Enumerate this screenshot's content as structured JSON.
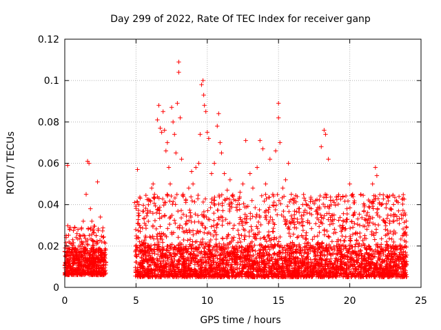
{
  "chart_data": {
    "type": "scatter",
    "title": "Day 299 of 2022, Rate Of TEC Index for receiver ganp",
    "xlabel": "GPS time / hours",
    "ylabel": "ROTI / TECUs",
    "xlim": [
      0,
      25
    ],
    "ylim": [
      0,
      0.12
    ],
    "xticks": [
      "0",
      "5",
      "10",
      "15",
      "20",
      "25"
    ],
    "yticks": [
      "0",
      "0.02",
      "0.04",
      "0.06",
      "0.08",
      "0.1",
      "0.12"
    ],
    "grid": true,
    "marker": "+",
    "color": "#ff0000",
    "points": [
      [
        0.1,
        0.025
      ],
      [
        0.2,
        0.059
      ],
      [
        0.3,
        0.022
      ],
      [
        0.5,
        0.021
      ],
      [
        0.7,
        0.019
      ],
      [
        1.0,
        0.02
      ],
      [
        1.3,
        0.032
      ],
      [
        1.5,
        0.045
      ],
      [
        1.6,
        0.061
      ],
      [
        1.7,
        0.06
      ],
      [
        1.8,
        0.038
      ],
      [
        1.9,
        0.032
      ],
      [
        2.0,
        0.028
      ],
      [
        2.2,
        0.025
      ],
      [
        2.3,
        0.051
      ],
      [
        2.5,
        0.034
      ],
      [
        2.6,
        0.022
      ],
      [
        2.8,
        0.018
      ],
      [
        4.9,
        0.041
      ],
      [
        5.1,
        0.057
      ],
      [
        5.2,
        0.04
      ],
      [
        5.4,
        0.022
      ],
      [
        5.6,
        0.031
      ],
      [
        5.8,
        0.036
      ],
      [
        6.0,
        0.042
      ],
      [
        6.1,
        0.048
      ],
      [
        6.2,
        0.05
      ],
      [
        6.3,
        0.045
      ],
      [
        6.5,
        0.081
      ],
      [
        6.6,
        0.088
      ],
      [
        6.7,
        0.077
      ],
      [
        6.8,
        0.075
      ],
      [
        6.9,
        0.085
      ],
      [
        7.0,
        0.076
      ],
      [
        7.1,
        0.066
      ],
      [
        7.2,
        0.07
      ],
      [
        7.3,
        0.058
      ],
      [
        7.4,
        0.05
      ],
      [
        7.5,
        0.087
      ],
      [
        7.6,
        0.08
      ],
      [
        7.7,
        0.074
      ],
      [
        7.8,
        0.065
      ],
      [
        7.9,
        0.089
      ],
      [
        8.0,
        0.104
      ],
      [
        8.0,
        0.109
      ],
      [
        8.1,
        0.082
      ],
      [
        8.2,
        0.062
      ],
      [
        8.3,
        0.045
      ],
      [
        8.5,
        0.042
      ],
      [
        8.7,
        0.048
      ],
      [
        8.9,
        0.056
      ],
      [
        9.0,
        0.05
      ],
      [
        9.2,
        0.058
      ],
      [
        9.4,
        0.06
      ],
      [
        9.5,
        0.074
      ],
      [
        9.6,
        0.098
      ],
      [
        9.7,
        0.1
      ],
      [
        9.75,
        0.093
      ],
      [
        9.8,
        0.088
      ],
      [
        9.9,
        0.085
      ],
      [
        10.0,
        0.075
      ],
      [
        10.1,
        0.072
      ],
      [
        10.3,
        0.055
      ],
      [
        10.5,
        0.06
      ],
      [
        10.7,
        0.078
      ],
      [
        10.8,
        0.084
      ],
      [
        10.9,
        0.07
      ],
      [
        11.0,
        0.065
      ],
      [
        11.2,
        0.055
      ],
      [
        11.4,
        0.047
      ],
      [
        11.6,
        0.052
      ],
      [
        11.8,
        0.044
      ],
      [
        12.0,
        0.042
      ],
      [
        12.3,
        0.046
      ],
      [
        12.5,
        0.05
      ],
      [
        12.7,
        0.071
      ],
      [
        13.0,
        0.055
      ],
      [
        13.2,
        0.048
      ],
      [
        13.5,
        0.058
      ],
      [
        13.7,
        0.071
      ],
      [
        13.9,
        0.067
      ],
      [
        14.1,
        0.05
      ],
      [
        14.4,
        0.062
      ],
      [
        14.6,
        0.045
      ],
      [
        14.8,
        0.066
      ],
      [
        15.0,
        0.089
      ],
      [
        15.0,
        0.082
      ],
      [
        15.1,
        0.07
      ],
      [
        15.3,
        0.048
      ],
      [
        15.5,
        0.052
      ],
      [
        15.7,
        0.06
      ],
      [
        15.9,
        0.045
      ],
      [
        16.1,
        0.042
      ],
      [
        16.4,
        0.038
      ],
      [
        16.7,
        0.04
      ],
      [
        17.0,
        0.036
      ],
      [
        17.3,
        0.038
      ],
      [
        17.6,
        0.042
      ],
      [
        18.0,
        0.068
      ],
      [
        18.2,
        0.076
      ],
      [
        18.3,
        0.074
      ],
      [
        18.5,
        0.062
      ],
      [
        18.7,
        0.032
      ],
      [
        18.9,
        0.035
      ],
      [
        19.2,
        0.044
      ],
      [
        19.5,
        0.03
      ],
      [
        19.8,
        0.038
      ],
      [
        20.0,
        0.05
      ],
      [
        20.2,
        0.045
      ],
      [
        20.4,
        0.026
      ],
      [
        20.7,
        0.03
      ],
      [
        21.0,
        0.037
      ],
      [
        21.3,
        0.033
      ],
      [
        21.6,
        0.05
      ],
      [
        21.8,
        0.058
      ],
      [
        21.9,
        0.054
      ],
      [
        22.2,
        0.04
      ],
      [
        22.5,
        0.028
      ],
      [
        22.8,
        0.031
      ],
      [
        23.1,
        0.032
      ],
      [
        23.4,
        0.041
      ],
      [
        23.7,
        0.025
      ],
      [
        23.9,
        0.035
      ],
      [
        23.95,
        0.022
      ]
    ]
  }
}
